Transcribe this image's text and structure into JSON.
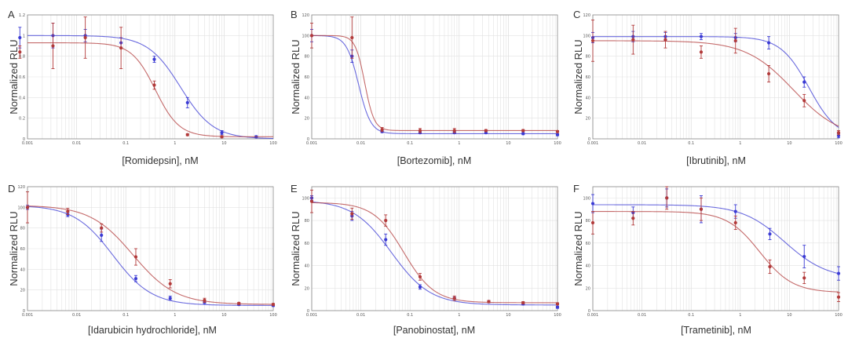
{
  "colors": {
    "series_1": "#3b3bd4",
    "series_2": "#b23a3a",
    "frame": "#888888",
    "grid": "#e2e2e2"
  },
  "y_axis_label": "Normalized RLU",
  "chart_data": [
    {
      "panel": "A",
      "type": "scatter",
      "xscale": "log",
      "xlabel": "[Romidepsin], nM",
      "ylabel": "Normalized RLU",
      "xlim": [
        0.001,
        100
      ],
      "ylim": [
        0,
        1.2
      ],
      "xticks": [
        "0.001",
        "0.01",
        "0.1",
        "1",
        "10",
        "100"
      ],
      "yticks": [
        "0",
        "0.2",
        "0.4",
        "0.6",
        "0.8",
        "1",
        "1.2"
      ],
      "grid": true,
      "series": [
        {
          "color": "blue",
          "points": [
            [
              0.0007,
              0.98,
              0.1
            ],
            [
              0.0033,
              1.0,
              0.12
            ],
            [
              0.015,
              1.0,
              0.06
            ],
            [
              0.08,
              0.93,
              0.05
            ],
            [
              0.38,
              0.77,
              0.03
            ],
            [
              1.8,
              0.35,
              0.05
            ],
            [
              9,
              0.06,
              0.02
            ],
            [
              45,
              0.02,
              0.01
            ]
          ],
          "curve": {
            "top": 1.0,
            "bottom": 0.0,
            "ec50": 1.3,
            "hill": 1.3
          }
        },
        {
          "color": "red",
          "points": [
            [
              0.0007,
              0.84,
              0.06
            ],
            [
              0.0033,
              0.9,
              0.22
            ],
            [
              0.015,
              0.98,
              0.2
            ],
            [
              0.08,
              0.88,
              0.2
            ],
            [
              0.38,
              0.52,
              0.04
            ],
            [
              1.8,
              0.04,
              0.01
            ],
            [
              9,
              0.02,
              0.01
            ]
          ],
          "curve": {
            "top": 0.93,
            "bottom": 0.02,
            "ec50": 0.4,
            "hill": 1.8
          }
        }
      ]
    },
    {
      "panel": "B",
      "type": "scatter",
      "xscale": "log",
      "xlabel": "[Bortezomib], nM",
      "ylabel": "Normalized RLU",
      "xlim": [
        0.001,
        100
      ],
      "ylim": [
        0,
        120
      ],
      "xticks": [
        "0.001",
        "0.01",
        "0.1",
        "1",
        "10",
        "100"
      ],
      "yticks": [
        "0",
        "20",
        "40",
        "60",
        "80",
        "100",
        "120"
      ],
      "grid": true,
      "series": [
        {
          "color": "blue",
          "points": [
            [
              0.001,
              100,
              6
            ],
            [
              0.0066,
              80,
              6
            ],
            [
              0.027,
              7,
              1
            ],
            [
              0.16,
              6,
              1
            ],
            [
              0.8,
              6,
              1
            ],
            [
              3.5,
              6,
              1
            ],
            [
              20,
              5,
              1
            ],
            [
              100,
              4,
              1
            ]
          ],
          "curve": {
            "top": 100,
            "bottom": 5,
            "ec50": 0.009,
            "hill": 3.5
          }
        },
        {
          "color": "red",
          "points": [
            [
              0.001,
              100,
              12
            ],
            [
              0.0066,
              98,
              20
            ],
            [
              0.027,
              9,
              2
            ],
            [
              0.16,
              8,
              2
            ],
            [
              0.8,
              8,
              2
            ],
            [
              3.5,
              8,
              1
            ],
            [
              20,
              8,
              1
            ],
            [
              100,
              7,
              1
            ]
          ],
          "curve": {
            "top": 100,
            "bottom": 8,
            "ec50": 0.012,
            "hill": 4.5
          }
        }
      ]
    },
    {
      "panel": "C",
      "type": "scatter",
      "xscale": "log",
      "xlabel": "[Ibrutinib], nM",
      "ylabel": "Normalized RLU",
      "xlim": [
        0.001,
        100
      ],
      "ylim": [
        0,
        120
      ],
      "xticks": [
        "0.001",
        "0.01",
        "0.1",
        "1",
        "10",
        "100"
      ],
      "yticks": [
        "0",
        "20",
        "40",
        "60",
        "80",
        "100",
        "120"
      ],
      "grid": true,
      "series": [
        {
          "color": "blue",
          "points": [
            [
              0.001,
              98,
              5
            ],
            [
              0.0066,
              99,
              5
            ],
            [
              0.03,
              99,
              4
            ],
            [
              0.16,
              99,
              3
            ],
            [
              0.8,
              98,
              4
            ],
            [
              3.8,
              93,
              6
            ],
            [
              20,
              55,
              5
            ],
            [
              100,
              3,
              2
            ]
          ],
          "curve": {
            "top": 99,
            "bottom": 0,
            "ec50": 25,
            "hill": 1.5
          }
        },
        {
          "color": "red",
          "points": [
            [
              0.001,
              95,
              20
            ],
            [
              0.0066,
              96,
              14
            ],
            [
              0.03,
              96,
              8
            ],
            [
              0.16,
              84,
              6
            ],
            [
              0.8,
              95,
              12
            ],
            [
              3.8,
              63,
              8
            ],
            [
              20,
              37,
              6
            ],
            [
              100,
              6,
              2
            ]
          ],
          "curve": {
            "top": 95,
            "bottom": 0,
            "ec50": 12,
            "hill": 0.9
          }
        }
      ]
    },
    {
      "panel": "D",
      "type": "scatter",
      "xscale": "log",
      "xlabel": "[Idarubicin hydrochloride], nM",
      "ylabel": "Normalized RLU",
      "xlim": [
        0.001,
        100
      ],
      "ylim": [
        0,
        120
      ],
      "xticks": [
        "0.001",
        "0.01",
        "0.1",
        "1",
        "10",
        "100"
      ],
      "yticks": [
        "0",
        "20",
        "40",
        "60",
        "80",
        "100",
        "120"
      ],
      "grid": true,
      "series": [
        {
          "color": "blue",
          "points": [
            [
              0.001,
              100,
              2
            ],
            [
              0.0066,
              93,
              2
            ],
            [
              0.032,
              73,
              6
            ],
            [
              0.16,
              31,
              3
            ],
            [
              0.8,
              12,
              2
            ],
            [
              4,
              8,
              1
            ],
            [
              20,
              6,
              1
            ],
            [
              100,
              5,
              1
            ]
          ],
          "curve": {
            "top": 102,
            "bottom": 5,
            "ec50": 0.055,
            "hill": 1.1
          }
        },
        {
          "color": "red",
          "points": [
            [
              0.001,
              100,
              15
            ],
            [
              0.0066,
              96,
              3
            ],
            [
              0.032,
              80,
              4
            ],
            [
              0.16,
              52,
              8
            ],
            [
              0.8,
              26,
              4
            ],
            [
              4,
              10,
              2
            ],
            [
              20,
              7,
              1
            ],
            [
              100,
              6,
              1
            ]
          ],
          "curve": {
            "top": 102,
            "bottom": 6,
            "ec50": 0.14,
            "hill": 1.0
          }
        }
      ]
    },
    {
      "panel": "E",
      "type": "scatter",
      "xscale": "log",
      "xlabel": "[Panobinostat], nM",
      "ylabel": "Normalized RLU",
      "xlim": [
        0.001,
        100
      ],
      "ylim": [
        0,
        110
      ],
      "xticks": [
        "0.001",
        "0.01",
        "0.1",
        "1",
        "10",
        "100"
      ],
      "yticks": [
        "0",
        "20",
        "40",
        "60",
        "80",
        "100"
      ],
      "grid": true,
      "series": [
        {
          "color": "blue",
          "points": [
            [
              0.001,
              100,
              2
            ],
            [
              0.0066,
              84,
              4
            ],
            [
              0.032,
              63,
              5
            ],
            [
              0.16,
              21,
              2
            ],
            [
              0.8,
              11,
              1
            ],
            [
              4,
              8,
              1
            ],
            [
              20,
              6,
              1
            ],
            [
              100,
              3,
              1
            ]
          ],
          "curve": {
            "top": 98,
            "bottom": 5,
            "ec50": 0.042,
            "hill": 1.1
          }
        },
        {
          "color": "red",
          "points": [
            [
              0.001,
              97,
              10
            ],
            [
              0.0066,
              86,
              5
            ],
            [
              0.032,
              80,
              5
            ],
            [
              0.16,
              30,
              3
            ],
            [
              0.8,
              11,
              2
            ],
            [
              4,
              8,
              1
            ],
            [
              20,
              7,
              1
            ],
            [
              100,
              6,
              1
            ]
          ],
          "curve": {
            "top": 96,
            "bottom": 7,
            "ec50": 0.075,
            "hill": 1.4
          }
        }
      ]
    },
    {
      "panel": "F",
      "type": "scatter",
      "xscale": "log",
      "xlabel": "[Trametinib], nM",
      "ylabel": "Normalized RLU",
      "xlim": [
        0.001,
        100
      ],
      "ylim": [
        0,
        110
      ],
      "xticks": [
        "0.001",
        "0.01",
        "0.1",
        "1",
        "10",
        "100"
      ],
      "yticks": [
        "0",
        "20",
        "40",
        "60",
        "80",
        "100"
      ],
      "grid": true,
      "series": [
        {
          "color": "blue",
          "points": [
            [
              0.001,
              95,
              8
            ],
            [
              0.0066,
              87,
              5
            ],
            [
              0.032,
              100,
              8
            ],
            [
              0.16,
              90,
              12
            ],
            [
              0.8,
              88,
              6
            ],
            [
              4,
              68,
              5
            ],
            [
              20,
              48,
              10
            ],
            [
              100,
              33,
              6
            ]
          ],
          "curve": {
            "top": 94,
            "bottom": 28,
            "ec50": 8,
            "hill": 1.0
          }
        },
        {
          "color": "red",
          "points": [
            [
              0.001,
              78,
              10
            ],
            [
              0.0066,
              82,
              6
            ],
            [
              0.032,
              100,
              10
            ],
            [
              0.16,
              90,
              10
            ],
            [
              0.8,
              78,
              6
            ],
            [
              4,
              39,
              6
            ],
            [
              20,
              29,
              5
            ],
            [
              100,
              12,
              4
            ]
          ],
          "curve": {
            "top": 88,
            "bottom": 16,
            "ec50": 2.5,
            "hill": 1.3
          }
        }
      ]
    }
  ]
}
